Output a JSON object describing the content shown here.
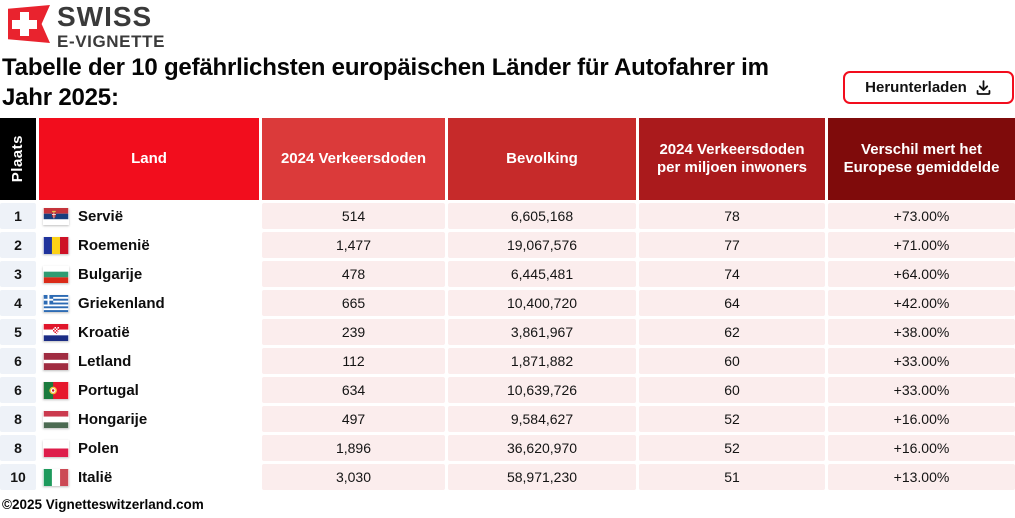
{
  "brand": {
    "line1": "SWISS",
    "line2": "E-VIGNETTE"
  },
  "title": "Tabelle der 10 gefährlichsten europäischen Länder für Autofahrer im Jahr 2025:",
  "download_button": {
    "label": "Herunterladen",
    "icon": "download-icon"
  },
  "colors": {
    "accent_red": "#F20D1D",
    "logo_red": "#E9232E",
    "rank_cell_bg": "#EEF2F8",
    "data_cell_bg": "#FBEDED",
    "header_colors": [
      "#000000",
      "#F20D1D",
      "#DB3A3A",
      "#C62A2A",
      "#AA1A1C",
      "#7F0B0B"
    ]
  },
  "table": {
    "columns": [
      "Plaats",
      "Land",
      "2024 Verkeersdoden",
      "Bevolking",
      "2024 Verkeersdoden per miljoen inwoners",
      "Verschil mert het Europese gemiddelde"
    ],
    "rows": [
      {
        "plaats": "1",
        "land": "Servië",
        "flag": "rs",
        "verkeersdoden": "514",
        "bevolking": "6,605,168",
        "per_miljoen": "78",
        "verschil": "+73.00%"
      },
      {
        "plaats": "2",
        "land": "Roemenië",
        "flag": "ro",
        "verkeersdoden": "1,477",
        "bevolking": "19,067,576",
        "per_miljoen": "77",
        "verschil": "+71.00%"
      },
      {
        "plaats": "3",
        "land": "Bulgarije",
        "flag": "bg",
        "verkeersdoden": "478",
        "bevolking": "6,445,481",
        "per_miljoen": "74",
        "verschil": "+64.00%"
      },
      {
        "plaats": "4",
        "land": "Griekenland",
        "flag": "gr",
        "verkeersdoden": "665",
        "bevolking": "10,400,720",
        "per_miljoen": "64",
        "verschil": "+42.00%"
      },
      {
        "plaats": "5",
        "land": "Kroatië",
        "flag": "hr",
        "verkeersdoden": "239",
        "bevolking": "3,861,967",
        "per_miljoen": "62",
        "verschil": "+38.00%"
      },
      {
        "plaats": "6",
        "land": "Letland",
        "flag": "lv",
        "verkeersdoden": "112",
        "bevolking": "1,871,882",
        "per_miljoen": "60",
        "verschil": "+33.00%"
      },
      {
        "plaats": "6",
        "land": "Portugal",
        "flag": "pt",
        "verkeersdoden": "634",
        "bevolking": "10,639,726",
        "per_miljoen": "60",
        "verschil": "+33.00%"
      },
      {
        "plaats": "8",
        "land": "Hongarije",
        "flag": "hu",
        "verkeersdoden": "497",
        "bevolking": "9,584,627",
        "per_miljoen": "52",
        "verschil": "+16.00%"
      },
      {
        "plaats": "8",
        "land": "Polen",
        "flag": "pl",
        "verkeersdoden": "1,896",
        "bevolking": "36,620,970",
        "per_miljoen": "52",
        "verschil": "+16.00%"
      },
      {
        "plaats": "10",
        "land": "Italië",
        "flag": "it",
        "verkeersdoden": "3,030",
        "bevolking": "58,971,230",
        "per_miljoen": "51",
        "verschil": "+13.00%"
      }
    ]
  },
  "footer": "©2025 Vignetteswitzerland.com"
}
